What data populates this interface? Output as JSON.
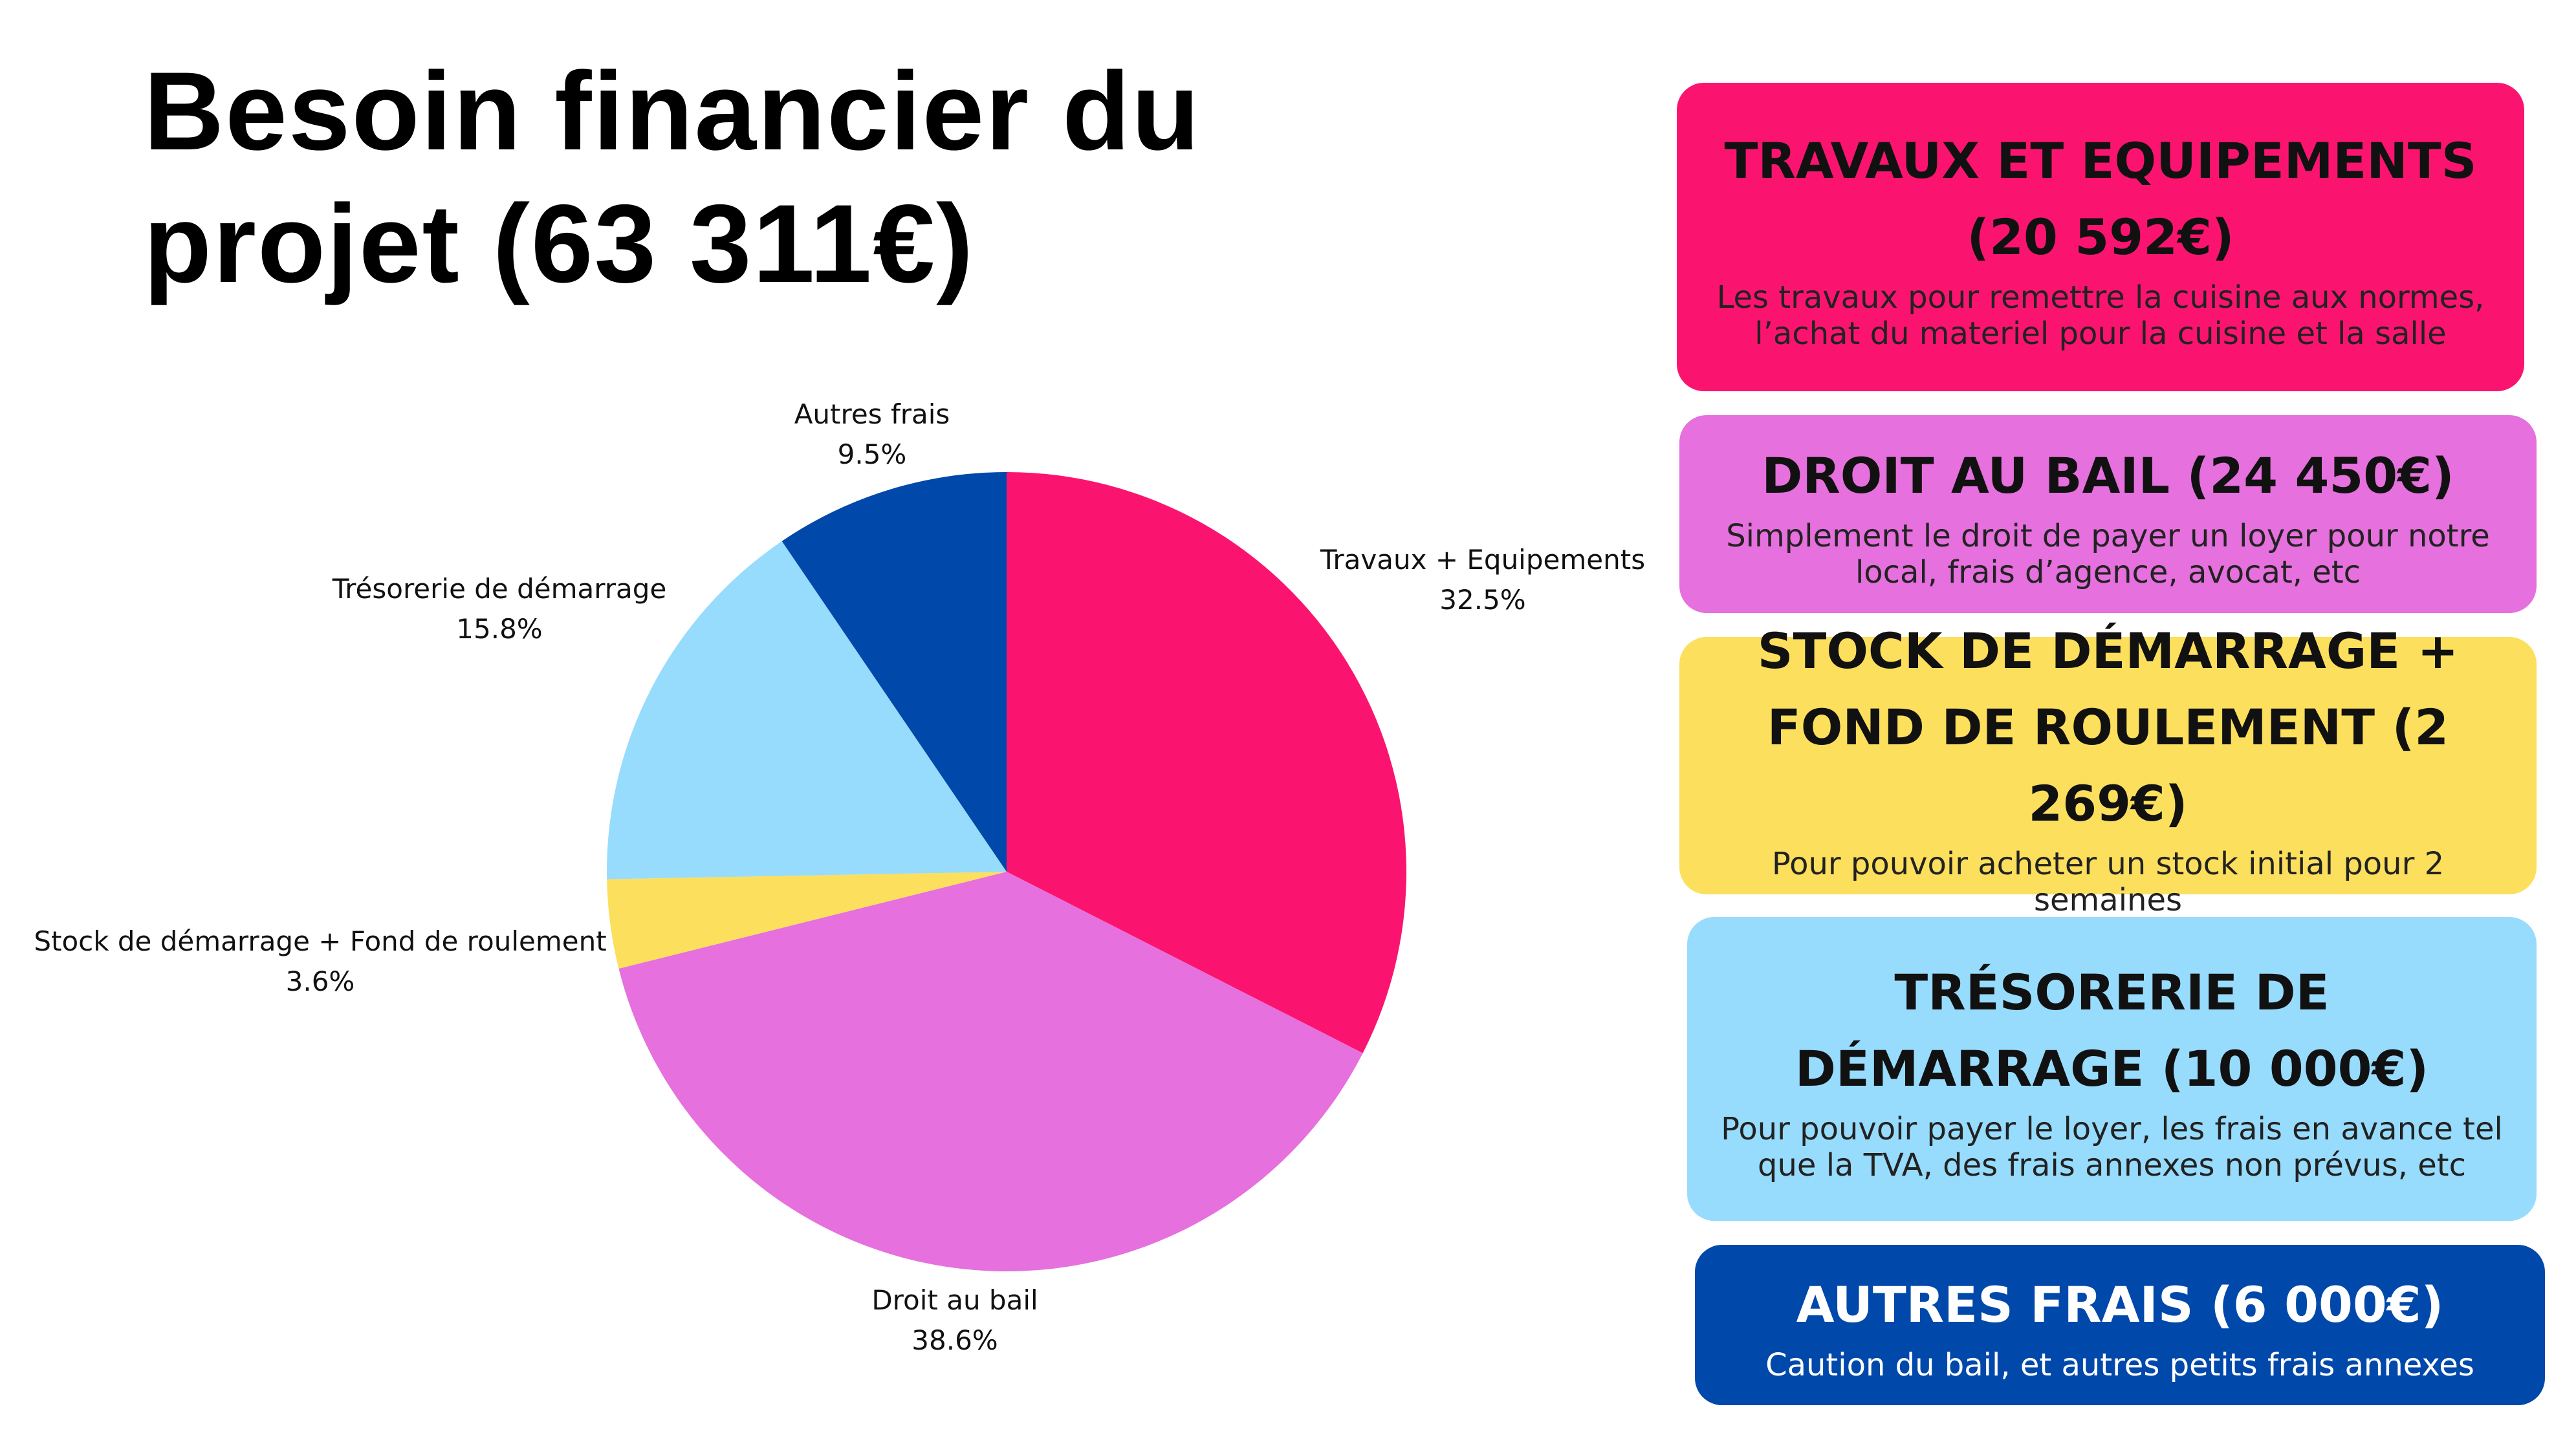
{
  "title": "Besoin financier du projet (63 311€)",
  "chart_data": {
    "type": "pie",
    "slices": [
      {
        "name": "Travaux + Equipements",
        "value": 32.5,
        "label": "32.5%",
        "color": "#FB146F"
      },
      {
        "name": "Droit au bail",
        "value": 38.6,
        "label": "38.6%",
        "color": "#E670DD"
      },
      {
        "name": "Stock de démarrage + Fond de roulement",
        "value": 3.6,
        "label": "3.6%",
        "color": "#FCDF5C"
      },
      {
        "name": "Trésorerie de démarrage",
        "value": 15.8,
        "label": "15.8%",
        "color": "#97DCFD"
      },
      {
        "name": "Autres frais",
        "value": 9.5,
        "label": "9.5%",
        "color": "#0148AB"
      }
    ],
    "start_angle": "12 o'clock",
    "direction": "clockwise"
  },
  "boxes": [
    {
      "title": "TRAVAUX ET EQUIPEMENTS (20 592€)",
      "desc": "Les travaux pour remettre la cuisine aux normes, l’achat du materiel pour la cuisine et la salle",
      "color": "#FB146F"
    },
    {
      "title": "DROIT AU BAIL (24 450€)",
      "desc": "Simplement le droit de payer un loyer pour notre local, frais d’agence, avocat, etc",
      "color": "#E670DD"
    },
    {
      "title": "STOCK DE DÉMARRAGE + FOND DE ROULEMENT (2 269€)",
      "desc": "Pour pouvoir acheter un stock initial pour 2 semaines",
      "color": "#FCDF5C"
    },
    {
      "title": "TRÉSORERIE DE DÉMARRAGE (10 000€)",
      "desc": "Pour pouvoir payer le loyer, les frais en avance tel que la TVA, des frais annexes non prévus, etc",
      "color": "#97DCFD"
    },
    {
      "title": "AUTRES FRAIS (6 000€)",
      "desc": "Caution du bail, et autres petits frais annexes",
      "color": "#0148AB"
    }
  ]
}
